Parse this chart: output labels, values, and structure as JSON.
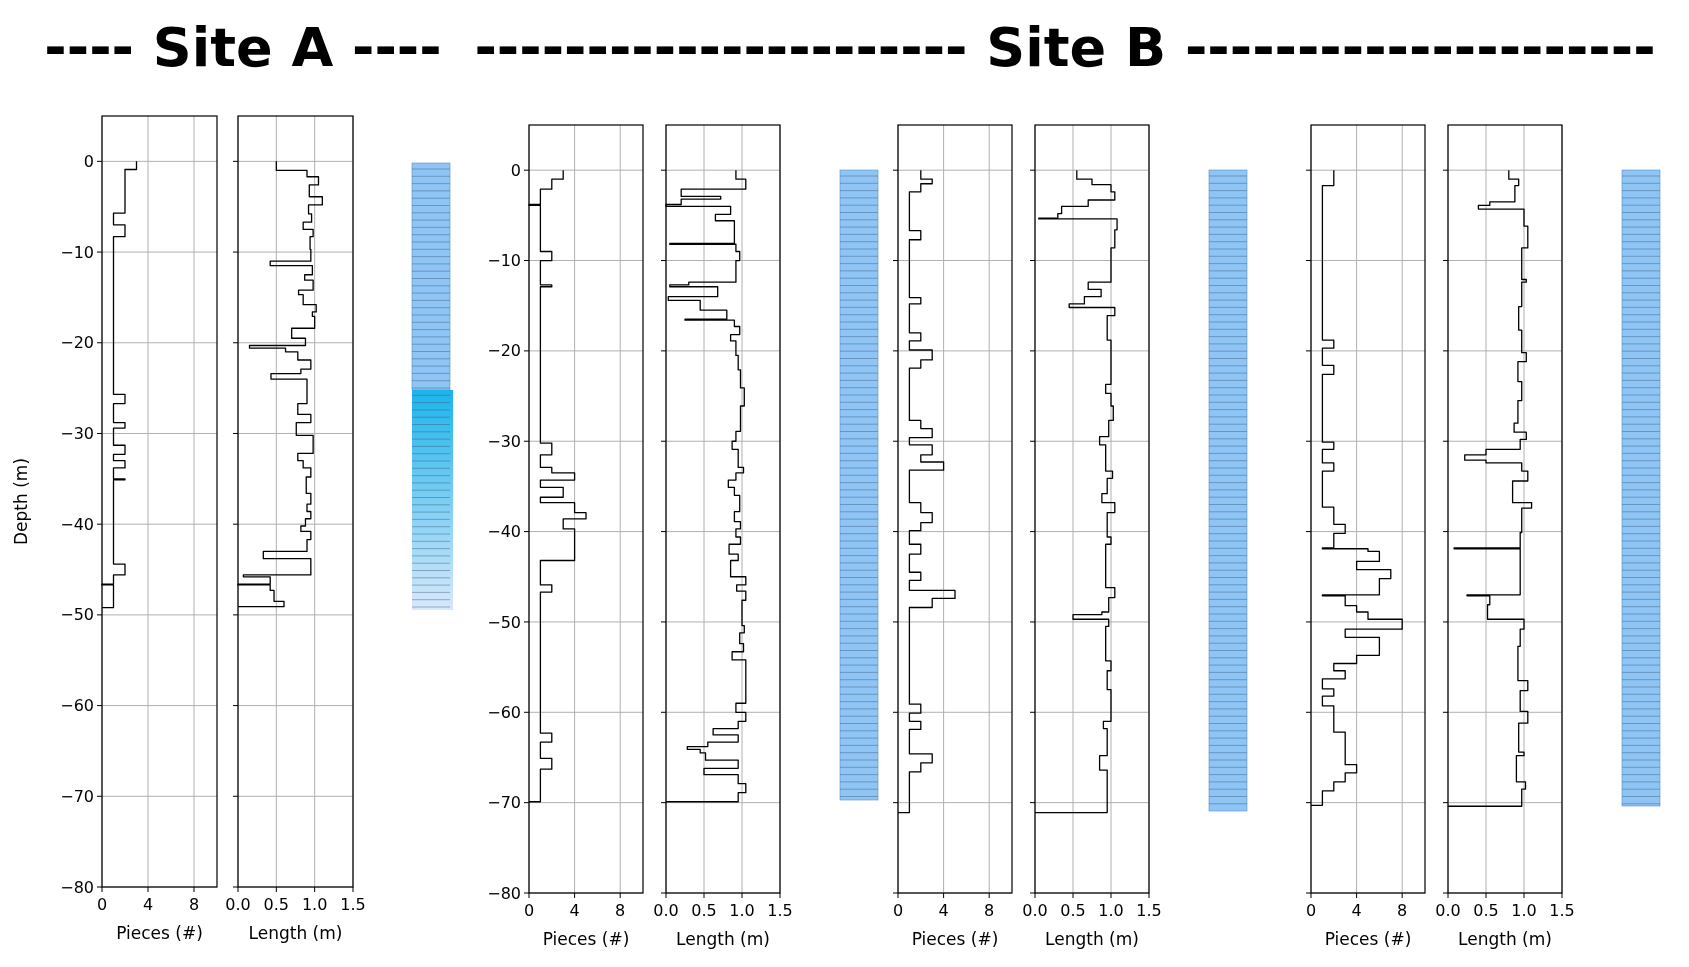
{
  "chart_data": [
    {
      "type": "step",
      "orientation": "horizontal",
      "title": "---- Site A ----",
      "xlabel": "Pieces (#)",
      "ylabel": "Depth (m)",
      "color": "#000000",
      "grid": true,
      "xlim": [
        0,
        10
      ],
      "xticks": [
        0,
        4,
        8
      ],
      "ylim": [
        -80,
        5
      ],
      "yticks": [
        0,
        -10,
        -20,
        -30,
        -40,
        -50,
        -60,
        -70,
        -80
      ],
      "x": [
        0,
        -0.9,
        -5.7,
        -7.0,
        -8.3,
        -25.7,
        -26.7,
        -28.8,
        -29.4,
        -31.3,
        -32.3,
        -33.0,
        -33.8,
        -35.0,
        -35.1,
        -44.4,
        -45.6,
        -46.6,
        -46.7,
        -49.2
      ],
      "values": [
        3,
        2,
        1,
        2,
        1,
        2,
        1,
        2,
        1,
        2,
        1,
        2,
        1,
        2,
        1,
        2,
        1,
        0,
        1,
        0
      ]
    },
    {
      "type": "step",
      "orientation": "horizontal",
      "xlabel": "Length (m)",
      "color": "#000000",
      "grid": true,
      "tick_labels": "x",
      "xlim": [
        0,
        1.5
      ],
      "xticks": [
        {
          "value": 0,
          "label": "0.0"
        },
        {
          "value": 0.5,
          "label": "0.5"
        },
        {
          "value": 1,
          "label": "1.0"
        },
        {
          "value": 1.5,
          "label": "1.5"
        }
      ],
      "ylim": [
        -80,
        5
      ],
      "yticks": [
        0,
        -10,
        -20,
        -30,
        -40,
        -50,
        -60,
        -70,
        -80
      ],
      "x": [
        0,
        -1.0,
        -1.7,
        -2.6,
        -3.9,
        -4.8,
        -5.8,
        -6.7,
        -7.5,
        -8.3,
        -9.7,
        -11.0,
        -11.5,
        -12.5,
        -13.1,
        -14.2,
        -14.7,
        -15.8,
        -16.6,
        -17.1,
        -18.4,
        -19.5,
        -20.3,
        -20.6,
        -21.0,
        -21.9,
        -22.9,
        -23.4,
        -24.0,
        -26.7,
        -27.9,
        -28.8,
        -30.2,
        -32.2,
        -33.0,
        -33.8,
        -34.8,
        -36.6,
        -37.8,
        -38.6,
        -39.4,
        -40.2,
        -40.8,
        -41.7,
        -43.0,
        -43.8,
        -45.6,
        -45.8,
        -46.6,
        -46.7,
        -47.3,
        -48.5,
        -49.1
      ],
      "values": [
        0.5,
        0.9,
        1.05,
        0.93,
        1.1,
        0.92,
        0.96,
        0.85,
        0.98,
        0.94,
        0.95,
        0.42,
        0.97,
        0.87,
        0.98,
        0.79,
        0.85,
        1.02,
        0.97,
        1.0,
        0.7,
        0.88,
        0.15,
        0.62,
        0.78,
        0.95,
        0.82,
        0.43,
        0.9,
        0.78,
        0.95,
        0.76,
        0.98,
        0.78,
        0.85,
        0.95,
        0.89,
        0.95,
        0.9,
        0.95,
        0.88,
        0.82,
        0.95,
        0.9,
        0.33,
        0.95,
        0.07,
        0.42,
        0,
        0.42,
        0.47,
        0.6,
        0
      ]
    },
    {
      "type": "step",
      "orientation": "horizontal",
      "title": "---------------------- Site B ---------------------",
      "xlabel": "Pieces (#)",
      "color": "#000000",
      "grid": true,
      "xlim": [
        0,
        10
      ],
      "xticks": [
        0,
        4,
        8
      ],
      "ylim": [
        -80,
        5
      ],
      "yticks": [
        0,
        -10,
        -20,
        -30,
        -40,
        -50,
        -60,
        -70,
        -80
      ],
      "x": [
        0,
        -1.0,
        -2.1,
        -3.8,
        -3.9,
        -9.0,
        -10.0,
        -12.7,
        -12.9,
        -30.2,
        -31.5,
        -32.9,
        -33.5,
        -34.3,
        -35.1,
        -36.2,
        -36.8,
        -37.9,
        -38.6,
        -39.7,
        -43.2,
        -45.9,
        -46.7,
        -62.3,
        -63.3,
        -65.1,
        -66.3,
        -69.9
      ],
      "values": [
        3,
        2,
        1,
        0,
        1,
        2,
        1,
        2,
        1,
        2,
        1,
        2,
        4,
        1,
        3,
        1,
        4,
        5,
        3,
        4,
        1,
        2,
        1,
        2,
        1,
        2,
        1,
        0
      ]
    },
    {
      "type": "step",
      "orientation": "horizontal",
      "xlabel": "Length (m)",
      "color": "#000000",
      "grid": true,
      "tick_labels": "x",
      "xlim": [
        0,
        1.5
      ],
      "xticks": [
        {
          "value": 0,
          "label": "0.0"
        },
        {
          "value": 0.5,
          "label": "0.5"
        },
        {
          "value": 1,
          "label": "1.0"
        },
        {
          "value": 1.5,
          "label": "1.5"
        }
      ],
      "ylim": [
        -80,
        5
      ],
      "yticks": [
        0,
        -10,
        -20,
        -30,
        -40,
        -50,
        -60,
        -70,
        -80
      ],
      "x": [
        0,
        -1.0,
        -2.1,
        -2.9,
        -3.2,
        -3.8,
        -4.0,
        -4.9,
        -5.6,
        -8.1,
        -8.2,
        -9.0,
        -10.0,
        -12.4,
        -12.7,
        -12.9,
        -14.0,
        -14.4,
        -15.5,
        -16.5,
        -16.6,
        -17.3,
        -18.2,
        -18.9,
        -20.5,
        -22.1,
        -24.1,
        -26.1,
        -28.9,
        -30.0,
        -30.9,
        -32.9,
        -33.5,
        -34.3,
        -35.1,
        -36.0,
        -37.8,
        -38.9,
        -39.7,
        -40.6,
        -41.4,
        -42.5,
        -43.2,
        -45.0,
        -45.9,
        -46.6,
        -47.6,
        -50.4,
        -51.2,
        -52.4,
        -53.3,
        -54.2,
        -59.0,
        -60.0,
        -61.0,
        -61.8,
        -62.5,
        -63.3,
        -63.8,
        -64.1,
        -64.5,
        -65.3,
        -66.2,
        -66.9,
        -67.9,
        -68.9,
        -69.9
      ],
      "values": [
        0.92,
        1.05,
        0.2,
        0.72,
        0.2,
        0,
        0.85,
        0.65,
        0.9,
        0.05,
        0.92,
        0.97,
        0.92,
        0.3,
        0.05,
        0.68,
        0.03,
        0.45,
        0.8,
        0.25,
        0.9,
        0.97,
        0.85,
        0.92,
        0.95,
        0.98,
        1.03,
        0.98,
        0.92,
        0.87,
        0.95,
        1.02,
        0.92,
        0.82,
        0.9,
        0.97,
        0.9,
        0.98,
        0.92,
        0.98,
        0.83,
        0.95,
        0.85,
        1.05,
        0.93,
        1.05,
        1.0,
        1.03,
        0.97,
        1.02,
        0.87,
        1.05,
        0.92,
        1.05,
        0.95,
        0.62,
        0.95,
        0.55,
        0.28,
        0.45,
        0.52,
        0.95,
        0.5,
        0.95,
        1.05,
        0.95,
        0
      ]
    },
    {
      "type": "step",
      "orientation": "horizontal",
      "xlabel": "Pieces (#)",
      "color": "#000000",
      "grid": true,
      "tick_labels": "x",
      "xlim": [
        0,
        10
      ],
      "xticks": [
        0,
        4,
        8
      ],
      "ylim": [
        -80,
        5
      ],
      "yticks": [
        0,
        -10,
        -20,
        -30,
        -40,
        -50,
        -60,
        -70,
        -80
      ],
      "x": [
        0,
        -1.0,
        -1.5,
        -2.4,
        -6.7,
        -7.7,
        -14.1,
        -14.8,
        -18.0,
        -18.9,
        -19.9,
        -21.0,
        -21.9,
        -27.7,
        -28.6,
        -29.6,
        -30.4,
        -31.5,
        -32.3,
        -33.2,
        -36.8,
        -37.9,
        -39.0,
        -39.9,
        -41.4,
        -42.5,
        -44.5,
        -45.4,
        -46.5,
        -47.4,
        -48.4,
        -59.1,
        -60.1,
        -61.0,
        -61.9,
        -64.6,
        -65.6,
        -66.6,
        -71.1
      ],
      "values": [
        2,
        3,
        2,
        1,
        2,
        1,
        2,
        1,
        2,
        1,
        3,
        2,
        1,
        2,
        3,
        1,
        3,
        2,
        4,
        1,
        2,
        3,
        2,
        1,
        2,
        1,
        2,
        1,
        5,
        3,
        1,
        2,
        1,
        2,
        1,
        3,
        2,
        1,
        0
      ]
    },
    {
      "type": "step",
      "orientation": "horizontal",
      "xlabel": "Length (m)",
      "color": "#000000",
      "grid": true,
      "tick_labels": "x",
      "xlim": [
        0,
        1.5
      ],
      "xticks": [
        {
          "value": 0,
          "label": "0.0"
        },
        {
          "value": 0.5,
          "label": "0.5"
        },
        {
          "value": 1,
          "label": "1.0"
        },
        {
          "value": 1.5,
          "label": "1.5"
        }
      ],
      "ylim": [
        -80,
        5
      ],
      "yticks": [
        0,
        -10,
        -20,
        -30,
        -40,
        -50,
        -60,
        -70,
        -80
      ],
      "x": [
        0,
        -1.0,
        -1.6,
        -2.4,
        -3.3,
        -4.0,
        -4.8,
        -5.3,
        -5.4,
        -6.6,
        -8.6,
        -12.4,
        -13.2,
        -14.0,
        -14.8,
        -15.2,
        -16.1,
        -18.8,
        -23.7,
        -24.7,
        -26.1,
        -27.7,
        -29.5,
        -30.4,
        -33.3,
        -34.1,
        -35.8,
        -36.8,
        -37.9,
        -40.6,
        -41.4,
        -46.2,
        -47.3,
        -48.9,
        -49.2,
        -49.7,
        -50.5,
        -54.3,
        -55.4,
        -57.5,
        -61.0,
        -61.8,
        -64.8,
        -66.4,
        -71.1
      ],
      "values": [
        0.55,
        0.75,
        1.0,
        1.05,
        0.7,
        0.35,
        0.3,
        0.05,
        1.08,
        1.05,
        1.0,
        0.7,
        0.87,
        0.65,
        0.45,
        1.05,
        0.95,
        1.0,
        0.93,
        1.0,
        1.03,
        0.97,
        0.85,
        0.93,
        1.02,
        0.95,
        0.88,
        1.05,
        0.95,
        1.0,
        0.93,
        1.05,
        0.97,
        0.88,
        0.5,
        0.97,
        0.93,
        1.0,
        0.95,
        1.0,
        0.9,
        0.95,
        0.85,
        0.95,
        0
      ]
    },
    {
      "type": "step",
      "orientation": "horizontal",
      "xlabel": "Pieces (#)",
      "color": "#000000",
      "grid": true,
      "tick_labels": "x",
      "xlim": [
        0,
        10
      ],
      "xticks": [
        0,
        4,
        8
      ],
      "ylim": [
        -80,
        5
      ],
      "yticks": [
        0,
        -10,
        -20,
        -30,
        -40,
        -50,
        -60,
        -70,
        -80
      ],
      "x": [
        0,
        -1.7,
        -18.8,
        -19.7,
        -21.6,
        -22.6,
        -30.1,
        -30.9,
        -32.4,
        -33.3,
        -37.3,
        -39.2,
        -40.2,
        -41.8,
        -41.9,
        -42.2,
        -43.3,
        -44.2,
        -45.2,
        -47.0,
        -47.1,
        -48.2,
        -48.9,
        -49.7,
        -50.8,
        -51.7,
        -53.7,
        -54.6,
        -55.4,
        -56.3,
        -57.4,
        -58.2,
        -59.3,
        -62.2,
        -65.8,
        -66.7,
        -67.7,
        -68.7,
        -70.3
      ],
      "values": [
        2,
        1,
        2,
        1,
        2,
        1,
        2,
        1,
        2,
        1,
        2,
        3,
        2,
        1,
        5,
        6,
        4,
        7,
        6,
        1,
        3,
        4,
        5,
        8,
        3,
        6,
        4,
        2,
        3,
        1,
        2,
        1,
        2,
        3,
        4,
        3,
        2,
        1,
        0
      ]
    },
    {
      "type": "step",
      "orientation": "horizontal",
      "xlabel": "Length (m)",
      "color": "#000000",
      "grid": true,
      "tick_labels": "x",
      "xlim": [
        0,
        1.5
      ],
      "xticks": [
        {
          "value": 0,
          "label": "0.0"
        },
        {
          "value": 0.5,
          "label": "0.5"
        },
        {
          "value": 1,
          "label": "1.0"
        },
        {
          "value": 1.5,
          "label": "1.5"
        }
      ],
      "ylim": [
        -80,
        5
      ],
      "yticks": [
        0,
        -10,
        -20,
        -30,
        -40,
        -50,
        -60,
        -70,
        -80
      ],
      "x": [
        0,
        -1.0,
        -1.7,
        -3.5,
        -3.9,
        -4.3,
        -6.2,
        -8.6,
        -12.1,
        -12.4,
        -15.1,
        -17.7,
        -20.2,
        -21.2,
        -23.4,
        -25.5,
        -28.0,
        -29.0,
        -29.8,
        -30.9,
        -31.5,
        -32.1,
        -32.4,
        -33.3,
        -34.4,
        -36.8,
        -37.4,
        -40.1,
        -41.8,
        -41.9,
        -47.0,
        -47.1,
        -48.1,
        -49.7,
        -50.8,
        -52.7,
        -56.5,
        -57.6,
        -59.9,
        -61.2,
        -64.4,
        -64.8,
        -67.7,
        -68.5,
        -70.4
      ],
      "values": [
        0.8,
        0.93,
        0.88,
        0.55,
        0.4,
        1.0,
        1.05,
        0.97,
        1.03,
        0.97,
        0.93,
        0.97,
        1.03,
        0.92,
        0.97,
        0.92,
        0.87,
        1.03,
        0.95,
        0.5,
        0.22,
        0.5,
        0.97,
        1.05,
        0.85,
        1.1,
        0.97,
        0.95,
        0.08,
        0.95,
        0.25,
        0.55,
        0.52,
        1.0,
        0.95,
        0.92,
        1.05,
        0.95,
        1.05,
        0.93,
        1.0,
        0.9,
        1.02,
        0.97,
        0
      ]
    }
  ]
}
